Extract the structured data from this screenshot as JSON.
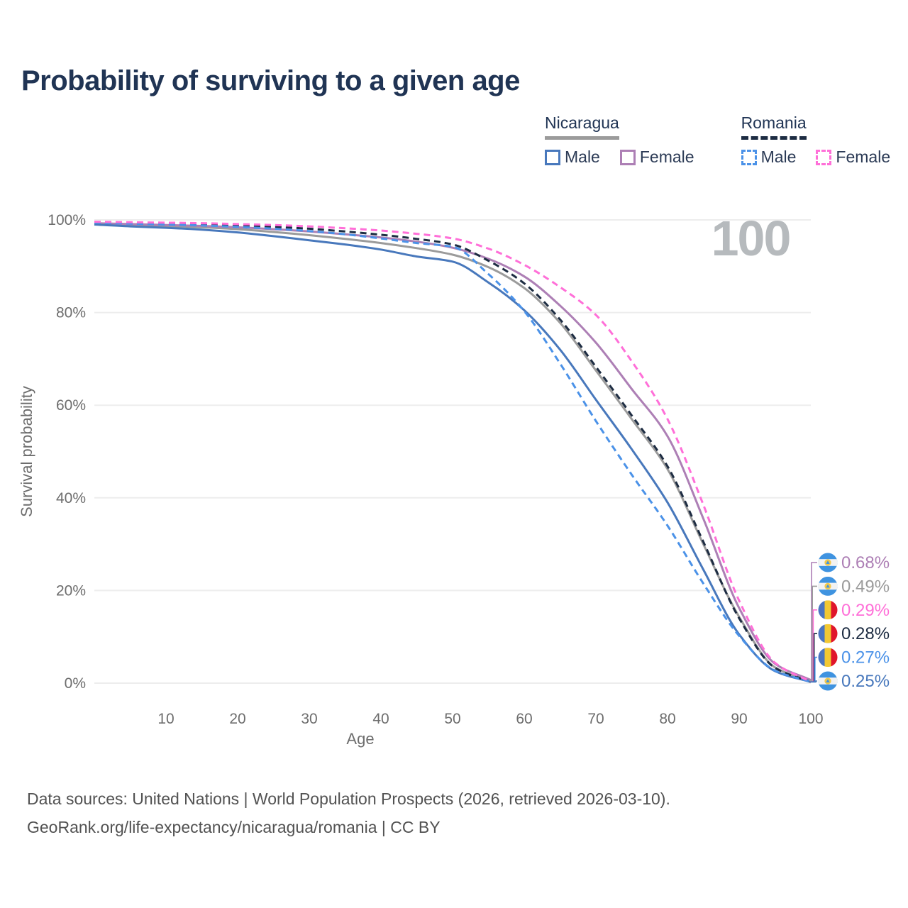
{
  "title": "Probability of surviving to a given age",
  "watermark": "100",
  "legend": {
    "groups": [
      {
        "label": "Nicaragua",
        "line_style": "solid",
        "underline_color": "#9b9b9b",
        "items": [
          {
            "label": "Male",
            "color": "#4878bc",
            "dashed": false
          },
          {
            "label": "Female",
            "color": "#ad7fb5",
            "dashed": false
          }
        ]
      },
      {
        "label": "Romania",
        "line_style": "dashed",
        "underline_color": "#1d2c42",
        "items": [
          {
            "label": "Male",
            "color": "#4b92e8",
            "dashed": true
          },
          {
            "label": "Female",
            "color": "#ff6fd8",
            "dashed": true
          }
        ]
      }
    ]
  },
  "chart_data": {
    "type": "line",
    "title": "Probability of surviving to a given age",
    "xlabel": "Age",
    "ylabel": "Survival probability",
    "xlim": [
      0,
      100
    ],
    "ylim": [
      0,
      100
    ],
    "grid": "horizontal",
    "x_ticks": [
      10,
      20,
      30,
      40,
      50,
      60,
      70,
      80,
      90,
      100
    ],
    "y_tick_values": [
      0,
      20,
      40,
      60,
      80,
      100
    ],
    "y_tick_labels": [
      "0%",
      "20%",
      "40%",
      "60%",
      "80%",
      "100%"
    ],
    "x": [
      0,
      5,
      10,
      15,
      20,
      25,
      30,
      35,
      40,
      45,
      50,
      55,
      60,
      65,
      70,
      75,
      80,
      85,
      90,
      95,
      100
    ],
    "series": [
      {
        "name": "Nicaragua Female",
        "country": "Nicaragua",
        "sex": "Female",
        "color": "#ad7fb5",
        "dashed": false,
        "end_label": "0.68%",
        "flag": "nicaragua",
        "values": [
          99.3,
          99.1,
          98.9,
          98.7,
          98.4,
          98.0,
          97.5,
          96.9,
          96.2,
          95.3,
          94.0,
          91.6,
          87.8,
          81.5,
          73.5,
          63.5,
          53.3,
          35.5,
          16.2,
          4.2,
          0.68
        ]
      },
      {
        "name": "Nicaragua Both sexes",
        "country": "Nicaragua",
        "sex": "Both",
        "color": "#9b9b9b",
        "dashed": false,
        "end_label": "0.49%",
        "flag": "nicaragua",
        "values": [
          99.2,
          98.9,
          98.7,
          98.4,
          98.0,
          97.4,
          96.7,
          95.9,
          95.0,
          93.9,
          92.5,
          89.8,
          85.3,
          77.8,
          67.5,
          57.0,
          46.2,
          30.0,
          14.3,
          3.4,
          0.49
        ]
      },
      {
        "name": "Romania Female",
        "country": "Romania",
        "sex": "Female",
        "color": "#ff6fd8",
        "dashed": true,
        "end_label": "0.29%",
        "flag": "romania",
        "values": [
          99.6,
          99.5,
          99.4,
          99.3,
          99.1,
          98.9,
          98.6,
          98.2,
          97.7,
          97.0,
          96.0,
          93.8,
          90.3,
          85.5,
          79.5,
          69.5,
          57.0,
          38.5,
          17.8,
          4.4,
          0.29
        ]
      },
      {
        "name": "Romania Both sexes",
        "country": "Romania",
        "sex": "Both",
        "color": "#1d2c42",
        "dashed": true,
        "end_label": "0.28%",
        "flag": "romania",
        "values": [
          99.5,
          99.3,
          99.2,
          99.0,
          98.8,
          98.5,
          98.1,
          97.5,
          96.8,
          95.9,
          94.7,
          91.2,
          86.3,
          78.5,
          68.3,
          57.8,
          46.8,
          30.5,
          14.0,
          3.3,
          0.28
        ]
      },
      {
        "name": "Romania Male",
        "country": "Romania",
        "sex": "Male",
        "color": "#4b92e8",
        "dashed": true,
        "end_label": "0.27%",
        "flag": "romania",
        "values": [
          99.4,
          99.2,
          99.0,
          98.8,
          98.5,
          98.1,
          97.6,
          96.9,
          96.0,
          95.0,
          94.2,
          88.3,
          80.3,
          69.0,
          56.6,
          45.0,
          34.0,
          21.5,
          10.2,
          2.7,
          0.27
        ]
      },
      {
        "name": "Nicaragua Male",
        "country": "Nicaragua",
        "sex": "Male",
        "color": "#4878bc",
        "dashed": false,
        "end_label": "0.25%",
        "flag": "nicaragua",
        "values": [
          99.0,
          98.6,
          98.3,
          97.9,
          97.3,
          96.5,
          95.6,
          94.7,
          93.6,
          92.1,
          91.0,
          86.5,
          80.5,
          72.0,
          61.2,
          50.5,
          39.0,
          24.5,
          10.5,
          2.6,
          0.25
        ]
      }
    ]
  },
  "flag_colors": {
    "nicaragua": {
      "band": "#3f93e0",
      "middle": "#f2f2f2",
      "emblem": "#f2c94c",
      "emblem_inner": "#3f93e0"
    },
    "romania": {
      "left": "#4a74c0",
      "middle": "#f2c832",
      "right": "#e0162b"
    }
  },
  "footer": {
    "line1": "Data sources: United Nations | World Population Prospects (2026, retrieved 2026-03-10).",
    "line2": "GeoRank.org/life-expectancy/nicaragua/romania | CC BY"
  }
}
